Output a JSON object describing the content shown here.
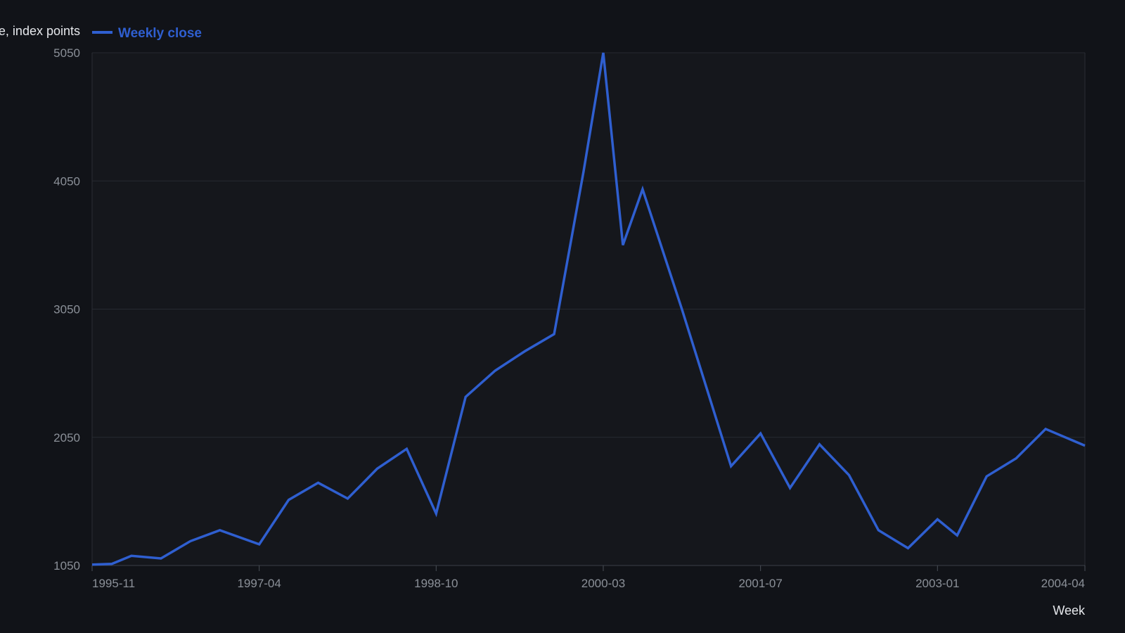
{
  "chart_data": {
    "type": "line",
    "ylabel": "e, index points",
    "xlabel": "Week",
    "ylim": [
      1050,
      5050
    ],
    "y_ticks": [
      1050,
      2050,
      3050,
      4050,
      5050
    ],
    "x_tick_labels": [
      "1995-11",
      "1997-04",
      "1998-10",
      "2000-03",
      "2001-07",
      "2003-01",
      "2004-04"
    ],
    "x_tick_dates": [
      "1995-11",
      "1997-04",
      "1998-10",
      "2000-03",
      "2001-07",
      "2003-01",
      "2004-04"
    ],
    "xlim": [
      "1995-11",
      "2004-04"
    ],
    "grid": true,
    "legend_position": "top-left",
    "colors": {
      "background": "#111318",
      "plot_background": "#15171c",
      "gridline": "#262a31",
      "series": "#2f5fd0"
    },
    "series": [
      {
        "name": "Weekly close",
        "points": [
          {
            "x": "1995-11",
            "y": 1057
          },
          {
            "x": "1996-01",
            "y": 1062
          },
          {
            "x": "1996-03",
            "y": 1125
          },
          {
            "x": "1996-06",
            "y": 1105
          },
          {
            "x": "1996-09",
            "y": 1240
          },
          {
            "x": "1996-12",
            "y": 1325
          },
          {
            "x": "1997-04",
            "y": 1215
          },
          {
            "x": "1997-07",
            "y": 1562
          },
          {
            "x": "1997-10",
            "y": 1695
          },
          {
            "x": "1998-01",
            "y": 1572
          },
          {
            "x": "1998-04",
            "y": 1805
          },
          {
            "x": "1998-07",
            "y": 1960
          },
          {
            "x": "1998-10",
            "y": 1455
          },
          {
            "x": "1999-01",
            "y": 2365
          },
          {
            "x": "1999-04",
            "y": 2570
          },
          {
            "x": "1999-07",
            "y": 2720
          },
          {
            "x": "1999-10",
            "y": 2855
          },
          {
            "x": "2000-01",
            "y": 4125
          },
          {
            "x": "2000-03",
            "y": 5050
          },
          {
            "x": "2000-05",
            "y": 3550
          },
          {
            "x": "2000-07",
            "y": 3985
          },
          {
            "x": "2000-11",
            "y": 3050
          },
          {
            "x": "2001-04",
            "y": 1825
          },
          {
            "x": "2001-07",
            "y": 2080
          },
          {
            "x": "2001-10",
            "y": 1655
          },
          {
            "x": "2002-01",
            "y": 1995
          },
          {
            "x": "2002-04",
            "y": 1755
          },
          {
            "x": "2002-07",
            "y": 1325
          },
          {
            "x": "2002-10",
            "y": 1185
          },
          {
            "x": "2003-01",
            "y": 1410
          },
          {
            "x": "2003-03",
            "y": 1285
          },
          {
            "x": "2003-06",
            "y": 1745
          },
          {
            "x": "2003-09",
            "y": 1885
          },
          {
            "x": "2003-12",
            "y": 2115
          },
          {
            "x": "2004-04",
            "y": 1985
          }
        ]
      }
    ]
  }
}
